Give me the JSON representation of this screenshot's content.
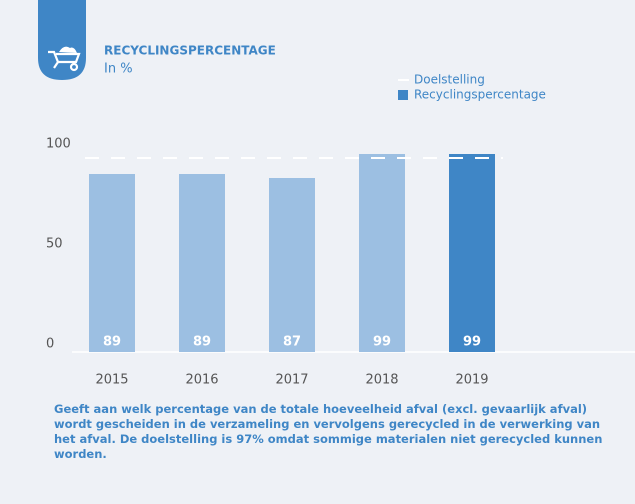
{
  "chart_data": {
    "type": "bar",
    "title": "RECYCLINGSPERCENTAGE",
    "subtitle": "In %",
    "categories": [
      "2015",
      "2016",
      "2017",
      "2018",
      "2019"
    ],
    "series": [
      {
        "name": "Recyclingspercentage",
        "color": "#3f86c6",
        "values": [
          89,
          89,
          87,
          99,
          99
        ]
      }
    ],
    "bar_colors": [
      "#9cbfe2",
      "#9cbfe2",
      "#9cbfe2",
      "#9cbfe2",
      "#3f86c6"
    ],
    "target": {
      "name": "Doelstelling",
      "value": 97,
      "color": "#ffffff"
    },
    "ylim": [
      0,
      100
    ],
    "yticks": [
      0,
      50,
      100
    ],
    "caption": "Geeft aan welk percentage van de totale hoeveelheid afval (excl. gevaarlijk afval) wordt gescheiden in de verzameling en vervolgens gerecycled in de verwerking van het afval. De doelstelling is 97% omdat sommige materialen niet gerecycled kunnen worden."
  }
}
